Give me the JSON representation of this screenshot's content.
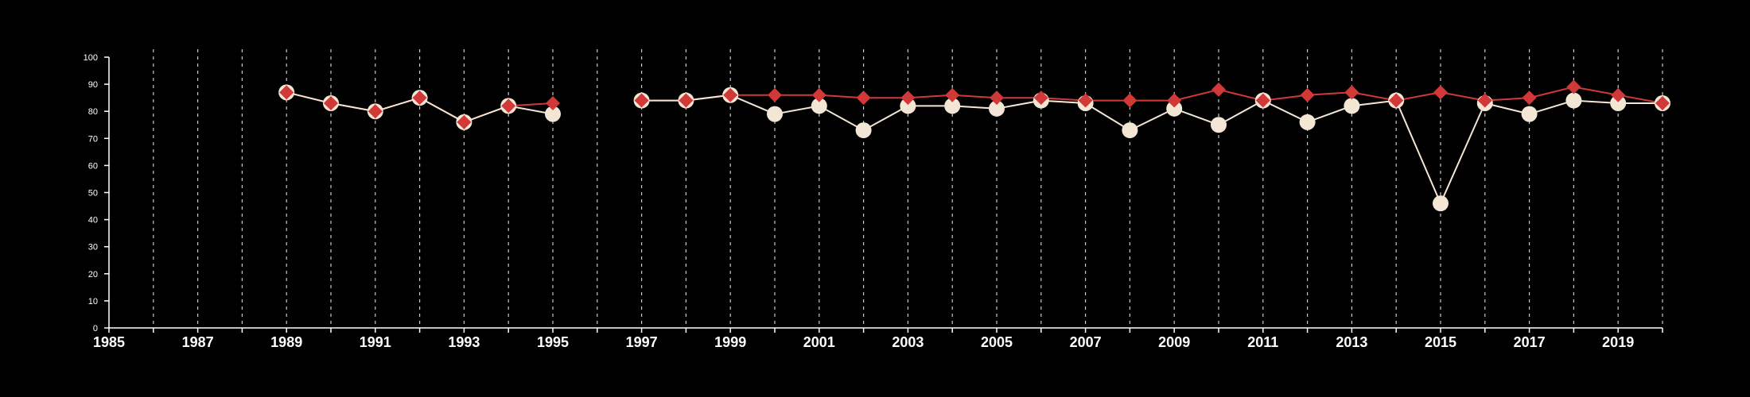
{
  "chart_data": {
    "type": "line",
    "title": "",
    "xlabel": "",
    "ylabel": "",
    "xlim": [
      1985,
      2020
    ],
    "ylim": [
      0,
      100
    ],
    "x_ticks_labeled": [
      "1985",
      "1987",
      "1989",
      "1991",
      "1993",
      "1995",
      "1997",
      "1999",
      "2001",
      "2003",
      "2005",
      "2007",
      "2009",
      "2011",
      "2013",
      "2015",
      "2017",
      "2019"
    ],
    "x_gridlines": [
      1986,
      1987,
      1988,
      1989,
      1990,
      1991,
      1992,
      1993,
      1994,
      1995,
      1996,
      1997,
      1998,
      1999,
      2000,
      2001,
      2002,
      2003,
      2004,
      2005,
      2006,
      2007,
      2008,
      2009,
      2010,
      2011,
      2012,
      2013,
      2014,
      2015,
      2016,
      2017,
      2018,
      2019,
      2020
    ],
    "y_ticks": [
      "0",
      "10",
      "20",
      "30",
      "40",
      "50",
      "60",
      "70",
      "80",
      "90",
      "100"
    ],
    "grid": "vertical dashed",
    "legend": "none",
    "series": [
      {
        "marker": "diamond",
        "color": "#d13838",
        "points": [
          [
            1989,
            87
          ],
          [
            1990,
            83
          ],
          [
            1991,
            80
          ],
          [
            1992,
            85
          ],
          [
            1993,
            76
          ],
          [
            1994,
            82
          ],
          [
            1995,
            83
          ],
          null,
          [
            1997,
            84
          ],
          [
            1998,
            84
          ],
          [
            1999,
            86
          ],
          [
            2000,
            86
          ],
          [
            2001,
            86
          ],
          [
            2002,
            85
          ],
          [
            2003,
            85
          ],
          [
            2004,
            86
          ],
          [
            2005,
            85
          ],
          [
            2006,
            85
          ],
          [
            2007,
            84
          ],
          [
            2008,
            84
          ],
          [
            2009,
            84
          ],
          [
            2010,
            88
          ],
          [
            2011,
            84
          ],
          [
            2012,
            86
          ],
          [
            2013,
            87
          ],
          [
            2014,
            84
          ],
          [
            2015,
            87
          ],
          [
            2016,
            84
          ],
          [
            2017,
            85
          ],
          [
            2018,
            89
          ],
          [
            2019,
            86
          ],
          [
            2020,
            83
          ]
        ]
      },
      {
        "marker": "circle",
        "color": "#f4e6d4",
        "points": [
          [
            1989,
            87
          ],
          [
            1990,
            83
          ],
          [
            1991,
            80
          ],
          [
            1992,
            85
          ],
          [
            1993,
            76
          ],
          [
            1994,
            82
          ],
          [
            1995,
            79
          ],
          null,
          [
            1997,
            84
          ],
          [
            1998,
            84
          ],
          [
            1999,
            86
          ],
          [
            2000,
            79
          ],
          [
            2001,
            82
          ],
          [
            2002,
            73
          ],
          [
            2003,
            82
          ],
          [
            2004,
            82
          ],
          [
            2005,
            81
          ],
          [
            2006,
            84
          ],
          [
            2007,
            83
          ],
          [
            2008,
            73
          ],
          [
            2009,
            81
          ],
          [
            2010,
            75
          ],
          [
            2011,
            84
          ],
          [
            2012,
            76
          ],
          [
            2013,
            82
          ],
          [
            2014,
            84
          ],
          [
            2015,
            46
          ],
          [
            2016,
            83
          ],
          [
            2017,
            79
          ],
          [
            2018,
            84
          ],
          [
            2019,
            83
          ],
          [
            2020,
            83
          ]
        ]
      }
    ]
  },
  "style": {
    "background": "#000000",
    "axis_color": "#ffffff",
    "grid_color": "#c8c8c8"
  }
}
